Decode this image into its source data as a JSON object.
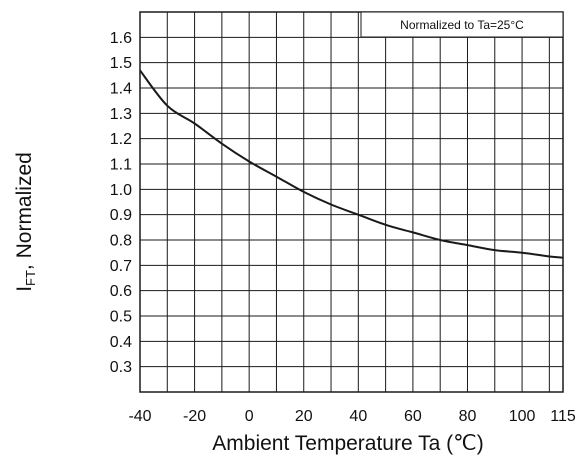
{
  "chart_data": {
    "type": "line",
    "xlabel": "Ambient Temperature Ta (℃)",
    "ylabel": {
      "main": "I",
      "sub": "FT",
      "rest": ", Normalized"
    },
    "annotation": "Normalized to Ta=25°C",
    "xlim": [
      -40,
      115
    ],
    "ylim": [
      0.2,
      1.7
    ],
    "x_ticks": [
      -40,
      -20,
      0,
      20,
      40,
      60,
      80,
      100,
      115
    ],
    "x_tick_labels": [
      "-40",
      "-20",
      "0",
      "20",
      "40",
      "60",
      "80",
      "100",
      "115"
    ],
    "y_ticks": [
      0.3,
      0.4,
      0.5,
      0.6,
      0.7,
      0.8,
      0.9,
      1.0,
      1.1,
      1.2,
      1.3,
      1.4,
      1.5,
      1.6
    ],
    "y_tick_labels": [
      "0.3",
      "0.4",
      "0.5",
      "0.6",
      "0.7",
      "0.8",
      "0.9",
      "1.0",
      "1.1",
      "1.2",
      "1.3",
      "1.4",
      "1.5",
      "1.6"
    ],
    "grid": true,
    "series": [
      {
        "x": [
          -40,
          -30,
          -20,
          -10,
          0,
          10,
          20,
          30,
          40,
          50,
          60,
          70,
          80,
          90,
          100,
          110,
          115
        ],
        "y": [
          1.47,
          1.33,
          1.26,
          1.18,
          1.11,
          1.05,
          0.99,
          0.94,
          0.9,
          0.86,
          0.83,
          0.8,
          0.78,
          0.76,
          0.75,
          0.735,
          0.73
        ],
        "color": "#1a1a1a"
      }
    ]
  }
}
